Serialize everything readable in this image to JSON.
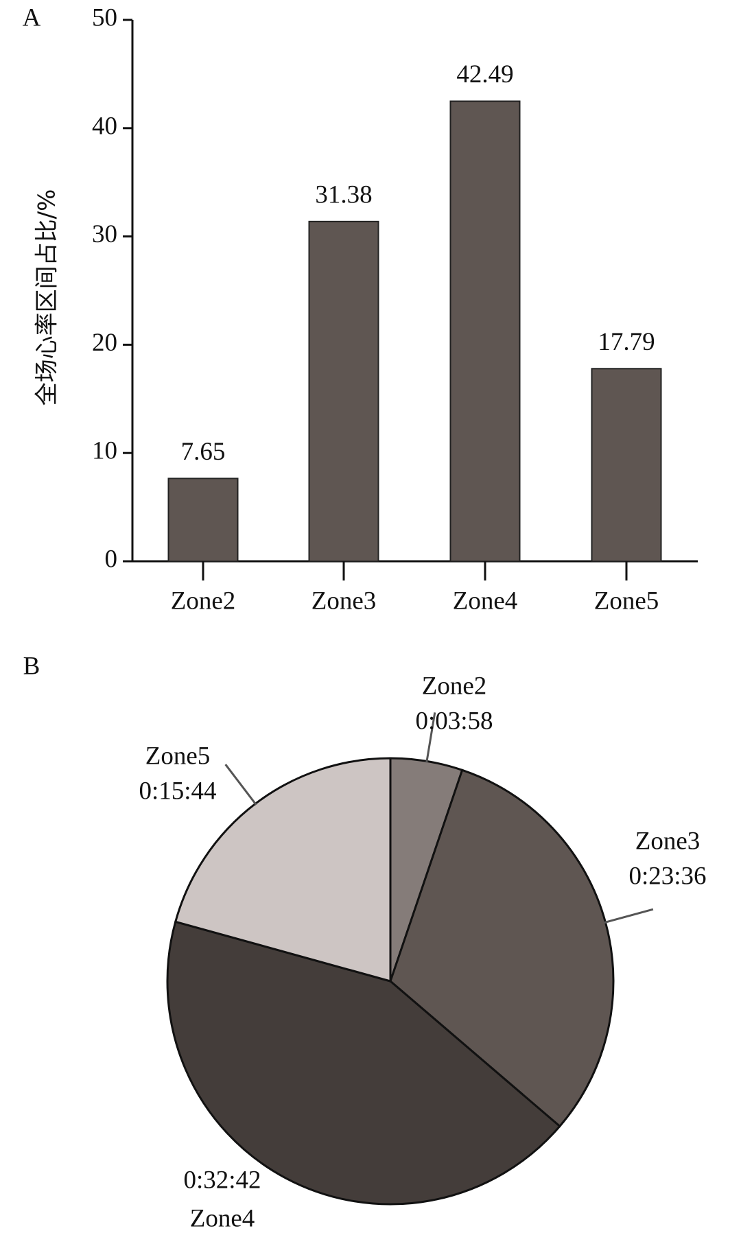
{
  "chart_data": [
    {
      "type": "bar",
      "panel": "A",
      "y_label": "全场心率区间占比/%",
      "categories": [
        "Zone2",
        "Zone3",
        "Zone4",
        "Zone5"
      ],
      "values": [
        7.65,
        31.38,
        42.49,
        17.79
      ],
      "color": "#5f5652",
      "ylim": [
        0,
        50
      ],
      "yticks": [
        0,
        10,
        20,
        30,
        40,
        50
      ]
    },
    {
      "type": "pie",
      "panel": "B",
      "categories": [
        "Zone2",
        "Zone3",
        "Zone4",
        "Zone5"
      ],
      "values": [
        238,
        1416,
        1962,
        944
      ],
      "value_labels": [
        "0:03:58",
        "0:23:36",
        "0:32:42",
        "0:15:44"
      ],
      "colors": [
        "#857c79",
        "#5f5652",
        "#443d3a",
        "#cdc5c3"
      ]
    }
  ]
}
